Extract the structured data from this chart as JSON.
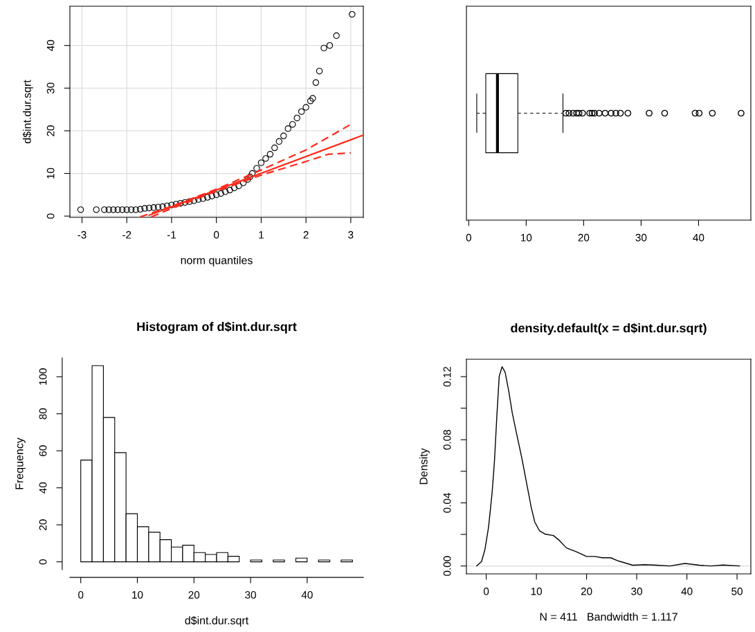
{
  "chart_data": [
    {
      "type": "scatter",
      "xlabel": "norm quantiles",
      "ylabel": "d$int.dur.sqrt",
      "xlim": [
        -3.27,
        3.28
      ],
      "ylim": [
        -0.3,
        49.2
      ],
      "xticks": [
        -3,
        -2,
        -1,
        0,
        1,
        2,
        3
      ],
      "yticks": [
        0,
        10,
        20,
        30,
        40
      ],
      "grid": true,
      "series": [
        {
          "type": "scatter",
          "marker": "circle",
          "color": "#000000",
          "x": [
            -3.03,
            -2.68,
            -2.5,
            -2.4,
            -2.3,
            -2.2,
            -2.1,
            -2.0,
            -1.9,
            -1.8,
            -1.7,
            -1.6,
            -1.5,
            -1.4,
            -1.3,
            -1.2,
            -1.1,
            -1.0,
            -0.9,
            -0.8,
            -0.7,
            -0.6,
            -0.5,
            -0.4,
            -0.3,
            -0.2,
            -0.1,
            0.0,
            0.1,
            0.2,
            0.3,
            0.4,
            0.5,
            0.6,
            0.7,
            0.75,
            0.8,
            0.9,
            1.0,
            1.1,
            1.2,
            1.3,
            1.4,
            1.5,
            1.6,
            1.7,
            1.8,
            1.9,
            2.0,
            2.1,
            2.15,
            2.22,
            2.3,
            2.4,
            2.53,
            2.68,
            3.03
          ],
          "values": [
            1.5,
            1.5,
            1.5,
            1.5,
            1.5,
            1.5,
            1.5,
            1.5,
            1.5,
            1.5,
            1.6,
            1.8,
            1.9,
            2.0,
            2.1,
            2.2,
            2.4,
            2.6,
            2.8,
            3.0,
            3.2,
            3.4,
            3.6,
            3.9,
            4.1,
            4.4,
            4.7,
            5.0,
            5.3,
            5.7,
            6.1,
            6.6,
            7.1,
            7.8,
            8.6,
            9.2,
            10.0,
            11.2,
            12.5,
            13.5,
            14.5,
            16.0,
            17.5,
            18.8,
            20.5,
            21.5,
            23.0,
            24.5,
            25.5,
            27.0,
            27.6,
            31.3,
            34.0,
            39.4,
            40.0,
            42.3,
            47.3
          ]
        },
        {
          "type": "line",
          "line_style": "solid",
          "color": "#ff2a1a",
          "x": [
            -1.5,
            3.28
          ],
          "values": [
            0.2,
            19.0
          ]
        },
        {
          "type": "line",
          "line_style": "dashed",
          "color": "#ff2a1a",
          "x": [
            -1.7,
            -1.0,
            0.0,
            1.0,
            2.0,
            3.0
          ],
          "values": [
            -0.2,
            2.3,
            6.3,
            10.8,
            15.5,
            21.5
          ]
        },
        {
          "type": "line",
          "line_style": "dashed",
          "color": "#ff2a1a",
          "x": [
            -1.45,
            -1.0,
            0.0,
            1.0,
            2.0,
            2.5,
            3.0
          ],
          "values": [
            -0.2,
            1.8,
            5.8,
            9.6,
            12.8,
            14.5,
            14.8
          ]
        }
      ]
    },
    {
      "type": "box",
      "orientation": "horizontal",
      "categories": [
        null
      ],
      "tick_labels": "x",
      "xlim": [
        -0.4,
        49.1
      ],
      "xticks": [
        0,
        10,
        20,
        30,
        40
      ],
      "boxes": [
        {
          "low": 1.4,
          "q1": 2.97,
          "median": 5.0,
          "q3": 8.55,
          "high": 16.4,
          "outliers": [
            16.9,
            17.45,
            18.15,
            18.78,
            19.19,
            19.81,
            21.05,
            21.47,
            21.88,
            22.71,
            23.74,
            24.78,
            25.6,
            26.4,
            27.7,
            31.4,
            34.1,
            39.4,
            40.1,
            42.4,
            47.4
          ]
        }
      ]
    },
    {
      "type": "histogram",
      "title": "Histogram of d$int.dur.sqrt",
      "xlabel": "d$int.dur.sqrt",
      "ylabel": "Frequency",
      "color": "#ffffff",
      "bins": [
        0,
        2,
        4,
        6,
        8,
        10,
        12,
        14,
        16,
        18,
        20,
        22,
        24,
        26,
        28,
        30,
        32,
        34,
        36,
        38,
        40,
        42,
        44,
        46,
        48
      ],
      "values": [
        55,
        106,
        78,
        59,
        26,
        19,
        16,
        12,
        8,
        9,
        5,
        4,
        5,
        3,
        0,
        1,
        0,
        1,
        0,
        2,
        0,
        1,
        0,
        1
      ],
      "xlim": [
        -1.92,
        49.92
      ],
      "ylim": [
        -4.24,
        110.2
      ],
      "xticks": [
        0,
        10,
        20,
        30,
        40
      ],
      "yticks": [
        0,
        20,
        40,
        60,
        80,
        100
      ]
    },
    {
      "type": "line",
      "title": "density.default(x = d$int.dur.sqrt)",
      "xlabel": "N = 411   Bandwidth = 1.117",
      "ylabel": "Density",
      "xlim": [
        -3.95,
        52.75
      ],
      "ylim": [
        -0.005,
        0.131
      ],
      "xticks": [
        0,
        10,
        20,
        30,
        40,
        50
      ],
      "yticks": [
        {
          "value": 0,
          "label": "0.00"
        },
        {
          "value": 0.02,
          "label": null
        },
        {
          "value": 0.04,
          "label": "0.04"
        },
        {
          "value": 0.06,
          "label": null
        },
        {
          "value": 0.08,
          "label": "0.08"
        },
        {
          "value": 0.1,
          "label": null
        },
        {
          "value": 0.12,
          "label": "0.12"
        }
      ],
      "ref_lines": [
        {
          "axis": "y",
          "value": 0,
          "color": "#d9d9d9"
        }
      ],
      "series": [
        {
          "color": "#000000",
          "x": [
            -1.9,
            -0.94,
            -0.24,
            0.47,
            1.18,
            1.65,
            2.12,
            2.59,
            3.16,
            3.77,
            4.48,
            5.19,
            6.13,
            7.08,
            8.02,
            8.96,
            9.67,
            10.6,
            11.8,
            13.4,
            14.6,
            16.0,
            17.9,
            20.0,
            21.7,
            23.1,
            24.8,
            26.4,
            29.2,
            31.6,
            34.0,
            36.6,
            39.6,
            42.5,
            44.8,
            47.2,
            50.5
          ],
          "values": [
            0.0,
            0.0028,
            0.0107,
            0.0248,
            0.0467,
            0.067,
            0.0953,
            0.1203,
            0.1263,
            0.1227,
            0.111,
            0.0969,
            0.0827,
            0.0686,
            0.053,
            0.0373,
            0.0279,
            0.0224,
            0.0201,
            0.0193,
            0.0161,
            0.0114,
            0.0091,
            0.006,
            0.006,
            0.0052,
            0.0052,
            0.0031,
            0.0005,
            0.0008,
            0.0005,
            0.0,
            0.0016,
            0.0005,
            0.0,
            0.0006,
            0.0
          ]
        }
      ]
    }
  ]
}
